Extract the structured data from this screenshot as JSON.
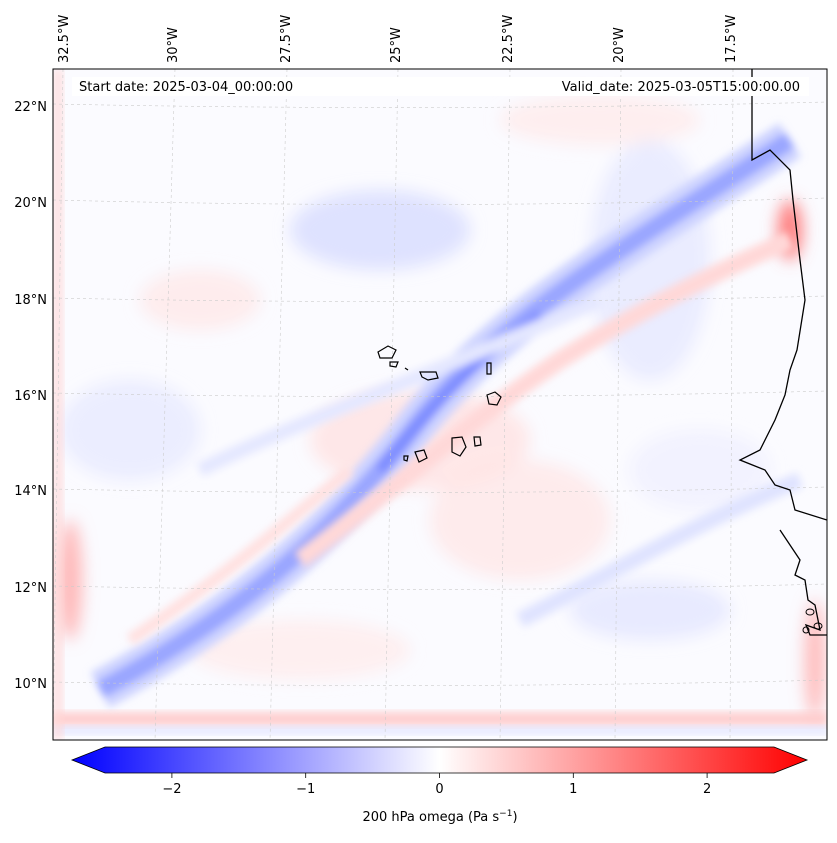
{
  "map": {
    "start_date": "Start date: 2025-03-04_00:00:00",
    "valid_date": "Valid_date: 2025-03-05T15:00:00.00",
    "lon_labels": [
      "32.5°W",
      "30°W",
      "27.5°W",
      "25°W",
      "22.5°W",
      "20°W",
      "17.5°W"
    ],
    "lat_labels": [
      "22°N",
      "20°N",
      "18°N",
      "16°N",
      "14°N",
      "12°N",
      "10°N"
    ],
    "field_colors": {
      "negative": "#5a6cff",
      "positive": "#ff6a6a",
      "neutral": "#ffffff"
    },
    "coastline_color": "#000000"
  },
  "colorbar": {
    "label": "200 hPa omega (Pa s",
    "label_exponent": "−1",
    "label_close": ")",
    "tick_labels": [
      "−2",
      "−1",
      "0",
      "1",
      "2"
    ],
    "tick_values": [
      -2,
      -1,
      0,
      1,
      2
    ],
    "range": [
      -2.5,
      2.5
    ],
    "min_color": "#0000ff",
    "mid_color": "#ffffff",
    "max_color": "#ff0000"
  }
}
